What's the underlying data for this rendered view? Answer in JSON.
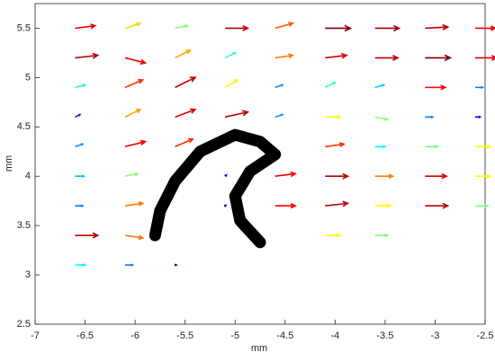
{
  "chart_data": {
    "type": "quiver",
    "x_label": "mm",
    "y_label": "mm",
    "xlim": [
      -7,
      -2.5
    ],
    "xticks": [
      -7,
      -6.5,
      -6,
      -5.5,
      -5,
      -4.5,
      -4,
      -3.5,
      -3,
      -2.5
    ],
    "ylim": [
      2.5,
      5.75
    ],
    "yticks": [
      2.5,
      3,
      3.5,
      4,
      4.5,
      5,
      5.5
    ],
    "colormap": [
      "#000080",
      "#0000ff",
      "#00ffff",
      "#ffff00",
      "#ff0000",
      "#800000"
    ],
    "clim": [
      0,
      1
    ],
    "x": [
      -6.6,
      -6.1,
      -5.6,
      -5.1,
      -4.6,
      -4.1,
      -3.6,
      -3.1,
      -2.6,
      -6.6,
      -6.1,
      -5.6,
      -5.1,
      -4.6,
      -4.1,
      -3.6,
      -3.1,
      -2.6,
      -6.6,
      -6.1,
      -5.6,
      -5.1,
      -4.6,
      -4.1,
      -3.6,
      -3.1,
      -2.6,
      -6.6,
      -6.1,
      -5.6,
      -5.1,
      -4.6,
      -4.1,
      -3.6,
      -3.1,
      -2.6,
      -6.6,
      -6.1,
      -5.6,
      -4.1,
      -3.6,
      -3.1,
      -2.6,
      -6.6,
      -6.1,
      -5.1,
      -4.6,
      -4.1,
      -3.6,
      -3.1,
      -2.6,
      -6.6,
      -6.1,
      -5.1,
      -4.6,
      -4.1,
      -3.6,
      -3.1,
      -2.6,
      -6.6,
      -6.1,
      -4.1,
      -3.6,
      -6.6,
      -6.1,
      -5.6
    ],
    "y": [
      5.5,
      5.5,
      5.5,
      5.5,
      5.5,
      5.5,
      5.5,
      5.5,
      5.5,
      5.2,
      5.2,
      5.2,
      5.2,
      5.2,
      5.2,
      5.2,
      5.2,
      5.2,
      4.9,
      4.9,
      4.9,
      4.9,
      4.9,
      4.9,
      4.9,
      4.9,
      4.9,
      4.6,
      4.6,
      4.6,
      4.6,
      4.6,
      4.6,
      4.6,
      4.6,
      4.6,
      4.3,
      4.3,
      4.3,
      4.3,
      4.3,
      4.3,
      4.3,
      4.0,
      4.0,
      4.0,
      4.0,
      4.0,
      4.0,
      4.0,
      4.0,
      3.7,
      3.7,
      3.7,
      3.7,
      3.7,
      3.7,
      3.7,
      3.7,
      3.4,
      3.4,
      3.4,
      3.4,
      3.1,
      3.1,
      3.1
    ],
    "u": [
      0.8,
      0.6,
      0.5,
      0.9,
      0.7,
      1,
      0.95,
      0.9,
      0.8,
      0.9,
      0.8,
      0.6,
      0.4,
      0.7,
      0.85,
      0.9,
      1,
      0.85,
      0.4,
      0.7,
      0.8,
      0.5,
      0.3,
      0.4,
      0.35,
      0.8,
      0.3,
      0.2,
      0.6,
      0.8,
      0.9,
      0.3,
      0.6,
      0.5,
      0.3,
      0.2,
      0.3,
      0.8,
      0.7,
      0.75,
      0.4,
      0.5,
      0.6,
      0.35,
      0.5,
      0.05,
      0.8,
      0.9,
      0.7,
      0.85,
      0.6,
      0.3,
      0.7,
      0.03,
      0.8,
      0.9,
      0.6,
      0.9,
      0.5,
      0.9,
      0.7,
      0.6,
      0.5,
      0.4,
      0.3,
      0.05
    ],
    "v": [
      0.1,
      0.2,
      0.1,
      0,
      0.2,
      0,
      0,
      0.05,
      0,
      0.1,
      -0.2,
      0.3,
      0.2,
      0.1,
      0.1,
      0,
      0,
      0,
      0.1,
      0.3,
      0.4,
      0.3,
      0.1,
      0.2,
      0.1,
      0,
      0,
      0.1,
      0.3,
      0.3,
      0.2,
      0.1,
      0,
      -0.1,
      0,
      0,
      0.1,
      0.2,
      0.3,
      0.1,
      0,
      0,
      0,
      0,
      0.1,
      0.05,
      0.1,
      0,
      0,
      0,
      0,
      0,
      0.1,
      0.02,
      0,
      0.1,
      0,
      0,
      0,
      0,
      -0.1,
      0,
      0,
      0,
      0,
      0
    ],
    "outline": {
      "color": "#000000",
      "x": [
        -5.8,
        -5.75,
        -5.6,
        -5.35,
        -5.0,
        -4.75,
        -4.6,
        -4.85,
        -5.0,
        -4.95,
        -4.75
      ],
      "y": [
        3.4,
        3.65,
        3.95,
        4.25,
        4.42,
        4.35,
        4.22,
        4.05,
        3.8,
        3.55,
        3.33
      ]
    }
  }
}
